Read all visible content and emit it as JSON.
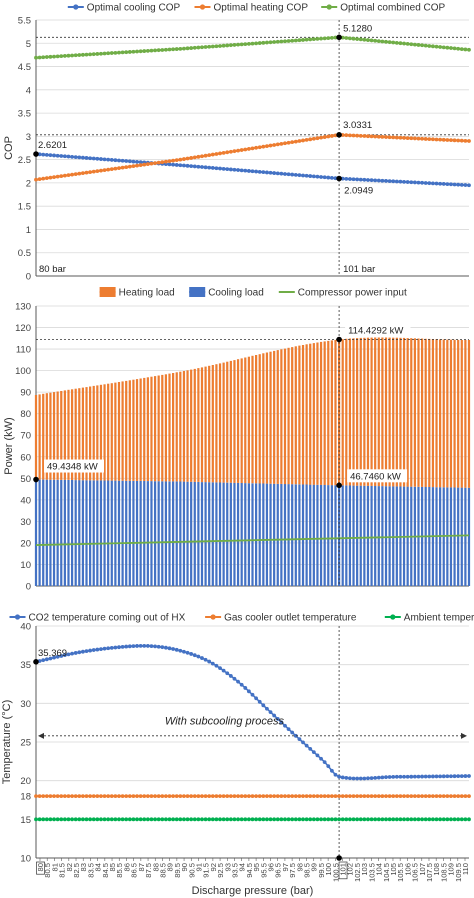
{
  "colors": {
    "cooling": "#4472C4",
    "heating": "#ED7D31",
    "combined": "#70AD47",
    "gas_cooler": "#ED7D31",
    "ambient": "#00B050",
    "grid": "#d9d9d9",
    "axis": "#595959",
    "marker": "#000000"
  },
  "chart_data": [
    {
      "type": "line",
      "xlabel": "",
      "ylabel": "COP",
      "ylim": [
        0,
        5.5
      ],
      "yticks": [
        "0",
        "0.5",
        "1",
        "1.5",
        "2",
        "2.5",
        "3",
        "3.5",
        "4",
        "4.5",
        "5",
        "5.5"
      ],
      "x": [
        80,
        110
      ],
      "legend": "top",
      "grid": true,
      "series": [
        {
          "name": "Optimal cooling COP",
          "color": "cooling",
          "points": [
            [
              80,
              2.6201
            ],
            [
              90,
              2.38
            ],
            [
              101,
              2.0949
            ],
            [
              110,
              1.95
            ]
          ]
        },
        {
          "name": "Optimal heating COP",
          "color": "heating",
          "points": [
            [
              80,
              2.07
            ],
            [
              90,
              2.5
            ],
            [
              101,
              3.0331
            ],
            [
              110,
              2.9
            ]
          ]
        },
        {
          "name": "Optimal combined COP",
          "color": "combined",
          "points": [
            [
              80,
              4.69
            ],
            [
              90,
              4.88
            ],
            [
              101,
              5.128
            ],
            [
              110,
              4.86
            ]
          ]
        }
      ],
      "annotations": [
        {
          "text": "5.1280",
          "x": 101,
          "y": 5.128
        },
        {
          "text": "3.0331",
          "x": 101,
          "y": 3.0331
        },
        {
          "text": "2.6201",
          "x": 80,
          "y": 2.6201
        },
        {
          "text": "2.0949",
          "x": 101,
          "y": 2.0949
        }
      ],
      "corner_labels": {
        "left": "80 bar",
        "right": "101 bar"
      }
    },
    {
      "type": "bar",
      "xlabel": "",
      "ylabel": "Power (kW)",
      "ylim": [
        0,
        130
      ],
      "yticks": [
        "0",
        "10",
        "20",
        "30",
        "40",
        "50",
        "60",
        "70",
        "80",
        "90",
        "100",
        "110",
        "120",
        "130"
      ],
      "x_start": 80,
      "x_end": 110,
      "x_step": 0.25,
      "legend": "top",
      "grid": true,
      "series": [
        {
          "name": "Heating load",
          "color": "heating",
          "stacked_top_points": [
            [
              80,
              88.7
            ],
            [
              90,
              99.5
            ],
            [
              101,
              114.4292
            ],
            [
              110,
              114.2
            ]
          ]
        },
        {
          "name": "Cooling load",
          "color": "cooling",
          "points": [
            [
              80,
              49.4348
            ],
            [
              90,
              48.5
            ],
            [
              101,
              46.746
            ],
            [
              110,
              45.6
            ]
          ]
        },
        {
          "name": "Compressor power input",
          "color": "combined",
          "points": [
            [
              80,
              19.0
            ],
            [
              110,
              23.5
            ]
          ]
        }
      ],
      "annotations": [
        {
          "text": "114.4292 kW",
          "x": 101,
          "y": 114.4292
        },
        {
          "text": "49.4348 kW",
          "x": 80,
          "y": 49.4348
        },
        {
          "text": "46.7460 kW",
          "x": 101,
          "y": 46.746
        }
      ]
    },
    {
      "type": "scatter",
      "xlabel": "Discharge pressure (bar)",
      "ylabel": "Temperature (°C)",
      "ylim": [
        10,
        40
      ],
      "yticks": [
        "10",
        "15",
        "18",
        "20",
        "25",
        "30",
        "35",
        "40"
      ],
      "legend": "top",
      "grid": true,
      "x_ticks": [
        "80",
        "80.5",
        "81",
        "81.5",
        "82",
        "82.5",
        "83",
        "83.5",
        "84",
        "84.5",
        "85",
        "85.5",
        "86",
        "86.5",
        "87",
        "87.5",
        "88",
        "88.5",
        "89",
        "89.5",
        "90",
        "90.5",
        "91",
        "91.5",
        "92",
        "92.5",
        "93",
        "93.5",
        "94",
        "94.5",
        "95",
        "95.5",
        "96",
        "96.5",
        "97",
        "97.5",
        "98",
        "98.5",
        "99",
        "99.5",
        "100",
        "100.5",
        "101",
        "102",
        "102.5",
        "103",
        "103.5",
        "104",
        "104.5",
        "105",
        "105.5",
        "106",
        "106.5",
        "107",
        "107.5",
        "108",
        "108.5",
        "109",
        "109.5",
        "110"
      ],
      "series": [
        {
          "name": "CO2 temperature coming out of HX",
          "color": "cooling",
          "points": [
            [
              80,
              35.369
            ],
            [
              83,
              36.6
            ],
            [
              86,
              37.3
            ],
            [
              88,
              37.4
            ],
            [
              90,
              36.8
            ],
            [
              92,
              35.4
            ],
            [
              94,
              32.8
            ],
            [
              96,
              29.3
            ],
            [
              98,
              25.8
            ],
            [
              100,
              22.4
            ],
            [
              101,
              20.5
            ],
            [
              105,
              20.5
            ],
            [
              110,
              20.6
            ]
          ]
        },
        {
          "name": "Gas cooler outlet temperature",
          "color": "gas_cooler",
          "points": [
            [
              80,
              18
            ],
            [
              110,
              18
            ]
          ]
        },
        {
          "name": "Ambient temperature",
          "color": "ambient",
          "points": [
            [
              80,
              15
            ],
            [
              110,
              15
            ]
          ]
        }
      ],
      "annotations": [
        {
          "text": "35.369",
          "x": 80,
          "y": 35.369
        },
        {
          "text": "With subcooling process",
          "x": 95,
          "y": 27.5
        }
      ]
    }
  ]
}
